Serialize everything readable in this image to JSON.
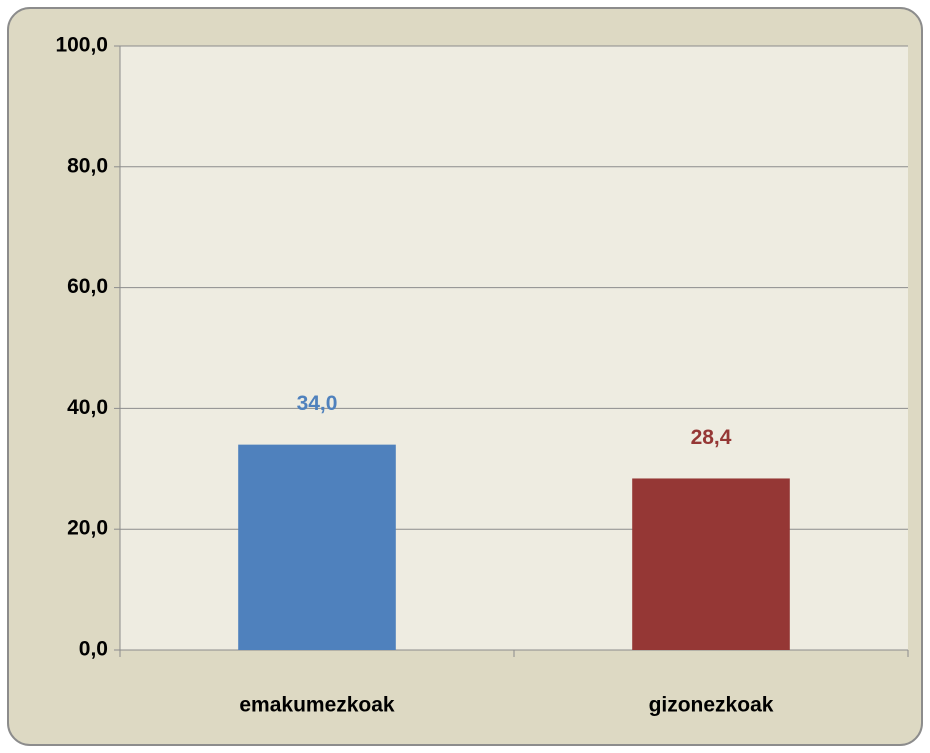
{
  "chart_data": {
    "type": "bar",
    "categories": [
      "emakumezkoak",
      "gizonezkoak"
    ],
    "values": [
      34.0,
      28.4
    ],
    "value_labels": [
      "34,0",
      "28,4"
    ],
    "colors": [
      "#4f81bd",
      "#953735"
    ],
    "ylim": [
      0,
      100
    ],
    "yticks": [
      {
        "value": 0,
        "label": "0,0"
      },
      {
        "value": 20,
        "label": "20,0"
      },
      {
        "value": 40,
        "label": "40,0"
      },
      {
        "value": 60,
        "label": "60,0"
      },
      {
        "value": 80,
        "label": "80,0"
      },
      {
        "value": 100,
        "label": "100,0"
      }
    ],
    "grid": true
  }
}
